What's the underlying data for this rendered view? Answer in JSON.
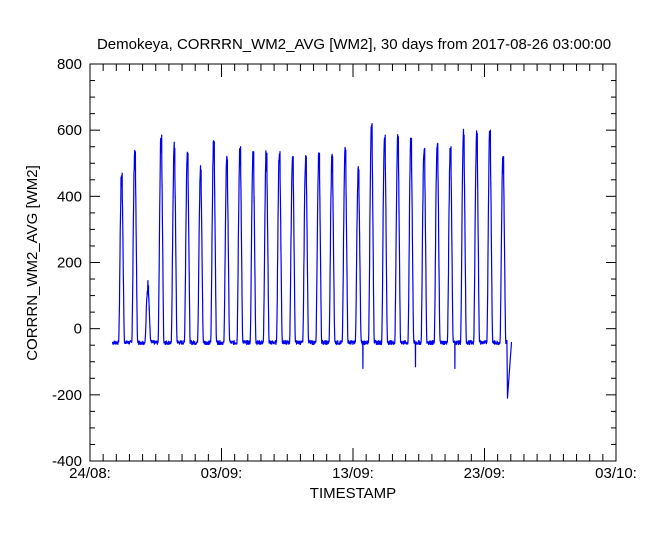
{
  "chart_data": {
    "type": "line",
    "title": "Demokeya, CORRRN_WM2_AVG [WM2], 30 days from  2017-08-26 03:00:00",
    "xlabel": "TIMESTAMP",
    "ylabel": "CORRRN_WM2_AVG [WM2]",
    "x_tick_labels": [
      "24/08:",
      "03/09:",
      "13/09:",
      "23/09:",
      "03/10:"
    ],
    "x_ticks": [
      "2017-08-24",
      "2017-09-03",
      "2017-09-13",
      "2017-09-23",
      "2017-10-03"
    ],
    "xlim": [
      "2017-08-24",
      "2017-10-03"
    ],
    "y_tick_labels": [
      "-400",
      "-200",
      "0",
      "200",
      "400",
      "600",
      "800"
    ],
    "y_ticks": [
      -400,
      -200,
      0,
      200,
      400,
      600,
      800
    ],
    "ylim": [
      -400,
      800
    ],
    "grid": false,
    "colors": {
      "line": "#0000ee",
      "axes": "#000000"
    },
    "series": [
      {
        "daily_peaks": [
          {
            "date": "2017-08-26",
            "peak": 470
          },
          {
            "date": "2017-08-27",
            "peak": 535
          },
          {
            "date": "2017-08-28",
            "peak": 130
          },
          {
            "date": "2017-08-29",
            "peak": 585
          },
          {
            "date": "2017-08-30",
            "peak": 545
          },
          {
            "date": "2017-08-31",
            "peak": 530
          },
          {
            "date": "2017-09-01",
            "peak": 480
          },
          {
            "date": "2017-09-02",
            "peak": 565
          },
          {
            "date": "2017-09-03",
            "peak": 510
          },
          {
            "date": "2017-09-04",
            "peak": 550
          },
          {
            "date": "2017-09-05",
            "peak": 535
          },
          {
            "date": "2017-09-06",
            "peak": 530
          },
          {
            "date": "2017-09-07",
            "peak": 535
          },
          {
            "date": "2017-09-08",
            "peak": 520
          },
          {
            "date": "2017-09-09",
            "peak": 520
          },
          {
            "date": "2017-09-10",
            "peak": 530
          },
          {
            "date": "2017-09-11",
            "peak": 520
          },
          {
            "date": "2017-09-12",
            "peak": 540
          },
          {
            "date": "2017-09-13",
            "peak": 480
          },
          {
            "date": "2017-09-14",
            "peak": 620
          },
          {
            "date": "2017-09-15",
            "peak": 585
          },
          {
            "date": "2017-09-16",
            "peak": 580
          },
          {
            "date": "2017-09-17",
            "peak": 575
          },
          {
            "date": "2017-09-18",
            "peak": 545
          },
          {
            "date": "2017-09-19",
            "peak": 560
          },
          {
            "date": "2017-09-20",
            "peak": 550
          },
          {
            "date": "2017-09-21",
            "peak": 585
          },
          {
            "date": "2017-09-22",
            "peak": 590
          },
          {
            "date": "2017-09-23",
            "peak": 600
          },
          {
            "date": "2017-09-24",
            "peak": 520
          }
        ],
        "night_floor": -40,
        "notable_dips": [
          {
            "date": "2017-09-13",
            "value": -120
          },
          {
            "date": "2017-09-17",
            "value": -115
          },
          {
            "date": "2017-09-20",
            "value": -120
          },
          {
            "date": "2017-09-24",
            "value": -210
          }
        ],
        "end": "2017-09-25"
      }
    ]
  }
}
